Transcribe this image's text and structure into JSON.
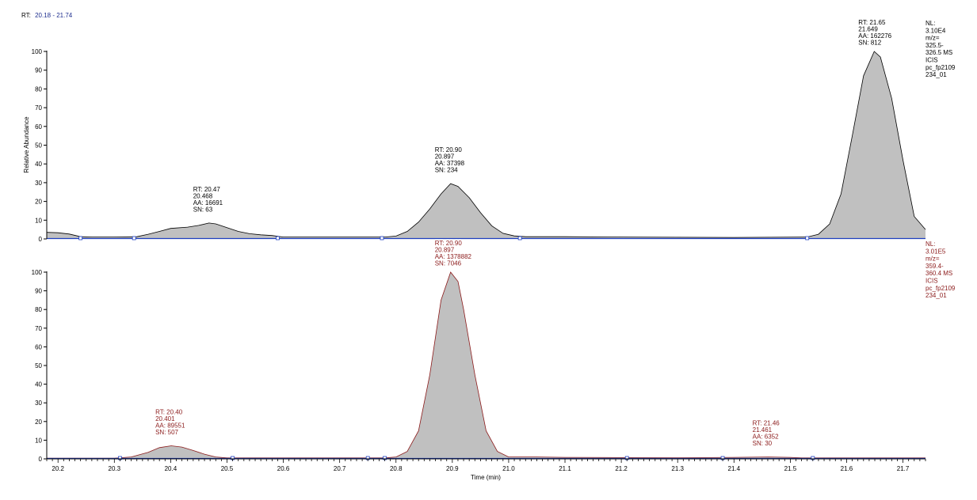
{
  "header": {
    "rt_label": "RT:",
    "rt_range": "20.18 - 21.74"
  },
  "colors": {
    "fill": "#c0c0c0",
    "top_outline": "#000000",
    "bottom_outline": "#8b1a1a",
    "baseline": "#1f3fbf",
    "axis": "#000000",
    "header_range": "#1f2f8f",
    "bottom_text": "#8b1a1a"
  },
  "chart_data": [
    {
      "type": "area",
      "name": "top",
      "xlim": [
        20.18,
        21.74
      ],
      "ylim": [
        0,
        100
      ],
      "ylabel": "Relative Abundance",
      "yticks": [
        0,
        10,
        20,
        30,
        40,
        50,
        60,
        70,
        80,
        90,
        100
      ],
      "points": [
        [
          20.18,
          3.5
        ],
        [
          20.2,
          3.3
        ],
        [
          20.22,
          2.6
        ],
        [
          20.24,
          1.2
        ],
        [
          20.26,
          1
        ],
        [
          20.3,
          1
        ],
        [
          20.34,
          1.2
        ],
        [
          20.36,
          2.5
        ],
        [
          20.38,
          4
        ],
        [
          20.4,
          5.6
        ],
        [
          20.43,
          6.3
        ],
        [
          20.45,
          7.2
        ],
        [
          20.468,
          8.5
        ],
        [
          20.48,
          8
        ],
        [
          20.5,
          6
        ],
        [
          20.52,
          4
        ],
        [
          20.54,
          2.8
        ],
        [
          20.56,
          2.2
        ],
        [
          20.58,
          1.8
        ],
        [
          20.6,
          1
        ],
        [
          20.7,
          1
        ],
        [
          20.78,
          1
        ],
        [
          20.8,
          1.5
        ],
        [
          20.82,
          4
        ],
        [
          20.84,
          9
        ],
        [
          20.86,
          16
        ],
        [
          20.88,
          24
        ],
        [
          20.897,
          29.5
        ],
        [
          20.91,
          28
        ],
        [
          20.93,
          22
        ],
        [
          20.95,
          14
        ],
        [
          20.97,
          7
        ],
        [
          20.99,
          3
        ],
        [
          21.01,
          1.6
        ],
        [
          21.03,
          1.2
        ],
        [
          21.1,
          1.2
        ],
        [
          21.2,
          1
        ],
        [
          21.4,
          0.8
        ],
        [
          21.53,
          1
        ],
        [
          21.55,
          2.5
        ],
        [
          21.57,
          8
        ],
        [
          21.59,
          24
        ],
        [
          21.61,
          55
        ],
        [
          21.63,
          87
        ],
        [
          21.649,
          100
        ],
        [
          21.66,
          97
        ],
        [
          21.68,
          75
        ],
        [
          21.7,
          42
        ],
        [
          21.72,
          12
        ],
        [
          21.74,
          5
        ]
      ],
      "baseline_markers": [
        20.24,
        20.335,
        20.59,
        20.775,
        21.02,
        21.53
      ],
      "annotations": [
        {
          "x": 20.468,
          "lines": [
            "RT: 20.47",
            "20.468",
            "AA: 16691",
            "SN: 63"
          ]
        },
        {
          "x": 20.897,
          "lines": [
            "RT: 20.90",
            "20.897",
            "AA: 37398",
            "SN: 234"
          ]
        },
        {
          "x": 21.649,
          "lines": [
            "RT: 21.65",
            "21.649",
            "AA: 162276",
            "SN: 812"
          ]
        }
      ],
      "side_label": [
        "NL:",
        "3.10E4",
        "m/z=",
        "325.5-",
        "326.5  MS",
        "ICIS",
        "pc_fp2109",
        "234_01"
      ]
    },
    {
      "type": "area",
      "name": "bottom",
      "xlim": [
        20.18,
        21.74
      ],
      "ylim": [
        0,
        100
      ],
      "xlabel": "Time (min)",
      "yticks": [
        0,
        10,
        20,
        30,
        40,
        50,
        60,
        70,
        80,
        90,
        100
      ],
      "xticks": [
        "20.2",
        "20.3",
        "20.4",
        "20.5",
        "20.6",
        "20.7",
        "20.8",
        "20.9",
        "21.0",
        "21.1",
        "21.2",
        "21.3",
        "21.4",
        "21.5",
        "21.6",
        "21.7"
      ],
      "points": [
        [
          20.18,
          0.4
        ],
        [
          20.3,
          0.4
        ],
        [
          20.33,
          1
        ],
        [
          20.36,
          3.5
        ],
        [
          20.38,
          6
        ],
        [
          20.401,
          7
        ],
        [
          20.42,
          6.3
        ],
        [
          20.44,
          4.5
        ],
        [
          20.46,
          2.5
        ],
        [
          20.48,
          1
        ],
        [
          20.5,
          0.5
        ],
        [
          20.78,
          0.5
        ],
        [
          20.8,
          1
        ],
        [
          20.82,
          4
        ],
        [
          20.84,
          15
        ],
        [
          20.86,
          45
        ],
        [
          20.88,
          85
        ],
        [
          20.897,
          100
        ],
        [
          20.91,
          95
        ],
        [
          20.92,
          80
        ],
        [
          20.94,
          45
        ],
        [
          20.96,
          15
        ],
        [
          20.98,
          4
        ],
        [
          21.0,
          1
        ],
        [
          21.05,
          1
        ],
        [
          21.1,
          0.8
        ],
        [
          21.3,
          0.6
        ],
        [
          21.4,
          0.8
        ],
        [
          21.461,
          1
        ],
        [
          21.5,
          0.8
        ],
        [
          21.52,
          0.5
        ],
        [
          21.74,
          0.5
        ]
      ],
      "baseline_markers": [
        20.31,
        20.51,
        20.75,
        20.78,
        21.21,
        21.38,
        21.54
      ],
      "annotations": [
        {
          "x": 20.401,
          "lines": [
            "RT: 20.40",
            "20.401",
            "AA: 89551",
            "SN: 507"
          ]
        },
        {
          "x": 20.897,
          "lines": [
            "RT: 20.90",
            "20.897",
            "AA: 1378882",
            "SN: 7046"
          ]
        },
        {
          "x": 21.461,
          "lines": [
            "RT: 21.46",
            "21.461",
            "AA: 6352",
            "SN: 30"
          ]
        }
      ],
      "side_label": [
        "NL:",
        "3.01E5",
        "m/z=",
        "359.4-",
        "360.4  MS",
        "ICIS",
        "pc_fp2109",
        "234_01"
      ]
    }
  ]
}
